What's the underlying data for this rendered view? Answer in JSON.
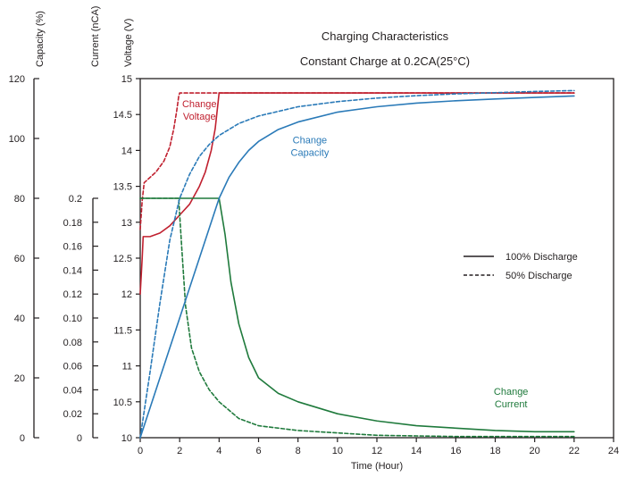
{
  "chart_data": {
    "type": "line",
    "title": "Charging Characteristics",
    "subtitle": "Constant Charge at 0.2CA(25°C)",
    "xlabel": "Time (Hour)",
    "xlim": [
      0,
      24
    ],
    "x_ticks": [
      "0",
      "2",
      "4",
      "6",
      "8",
      "10",
      "12",
      "14",
      "16",
      "18",
      "20",
      "22",
      "24"
    ],
    "y_axes": {
      "voltage": {
        "label": "Voltage (V)",
        "range": [
          10,
          15
        ],
        "ticks": [
          "10",
          "10.5",
          "11",
          "11.5",
          "12",
          "12.5",
          "13",
          "13.5",
          "14",
          "14.5",
          "15"
        ]
      },
      "current": {
        "label": "Current (nCA)",
        "range": [
          0,
          0.2
        ],
        "ticks": [
          "0",
          "0.02",
          "0.04",
          "0.06",
          "0.08",
          "0.10",
          "0.12",
          "0.14",
          "0.16",
          "0.18",
          "0.2"
        ]
      },
      "capacity": {
        "label": "Capacity (%)",
        "range": [
          0,
          120
        ],
        "ticks": [
          "0",
          "20",
          "40",
          "60",
          "80",
          "100",
          "120"
        ]
      }
    },
    "legend": {
      "placement": "right",
      "entries": [
        {
          "label": "100% Discharge",
          "style": "solid"
        },
        {
          "label": "50% Discharge",
          "style": "dashed"
        }
      ]
    },
    "annotations": [
      {
        "text": [
          "Change",
          "Voltage"
        ],
        "color": "#c0202f",
        "x": 3.0,
        "y_voltage": 14.6
      },
      {
        "text": [
          "Change",
          "Capacity"
        ],
        "color": "#2a7ab8",
        "x": 8.6,
        "y_voltage": 14.1
      },
      {
        "text": [
          "Change",
          "Current"
        ],
        "color": "#1f7a3c",
        "x": 18.8,
        "y_voltage": 10.6
      }
    ],
    "colors": {
      "voltage": "#c0202f",
      "capacity": "#2a7ab8",
      "current": "#1f7a3c",
      "axis": "#231f20"
    },
    "series": [
      {
        "quantity": "voltage",
        "discharge": "100%",
        "style": "solid",
        "axis": "voltage",
        "x": [
          0,
          0.1,
          0.15,
          0.2,
          0.5,
          1,
          1.5,
          2,
          2.5,
          3,
          3.3,
          3.6,
          3.8,
          3.9,
          4,
          4,
          22
        ],
        "y": [
          12.0,
          12.5,
          12.8,
          12.8,
          12.8,
          12.85,
          12.95,
          13.1,
          13.25,
          13.5,
          13.7,
          14.0,
          14.3,
          14.55,
          14.8,
          14.8,
          14.8
        ]
      },
      {
        "quantity": "voltage",
        "discharge": "50%",
        "style": "dashed",
        "axis": "voltage",
        "x": [
          0,
          0.1,
          0.2,
          0.4,
          0.8,
          1.2,
          1.5,
          1.7,
          1.85,
          1.95,
          2,
          4,
          8,
          12,
          16,
          20,
          22
        ],
        "y": [
          12.9,
          13.3,
          13.55,
          13.6,
          13.7,
          13.85,
          14.05,
          14.3,
          14.55,
          14.75,
          14.8,
          14.8,
          14.8,
          14.8,
          14.8,
          14.8,
          14.8
        ]
      },
      {
        "quantity": "current",
        "discharge": "100%",
        "style": "solid",
        "axis": "current",
        "x": [
          0,
          4,
          4.3,
          4.6,
          5,
          5.5,
          6,
          7,
          8,
          10,
          12,
          14,
          16,
          18,
          20,
          22
        ],
        "y": [
          0.2,
          0.2,
          0.17,
          0.13,
          0.095,
          0.067,
          0.05,
          0.037,
          0.03,
          0.02,
          0.014,
          0.01,
          0.008,
          0.006,
          0.005,
          0.005
        ]
      },
      {
        "quantity": "current",
        "discharge": "50%",
        "style": "dashed",
        "axis": "current",
        "x": [
          0,
          1.95,
          2.1,
          2.3,
          2.6,
          3,
          3.5,
          4,
          5,
          6,
          8,
          10,
          12,
          14,
          16,
          18,
          20,
          22
        ],
        "y": [
          0.2,
          0.2,
          0.16,
          0.11,
          0.075,
          0.055,
          0.04,
          0.03,
          0.016,
          0.01,
          0.006,
          0.004,
          0.002,
          0.0015,
          0.001,
          0.001,
          0.001,
          0.001
        ]
      },
      {
        "quantity": "capacity",
        "discharge": "100%",
        "style": "solid",
        "axis": "capacity",
        "x": [
          0,
          1,
          2,
          3,
          4,
          4.5,
          5,
          5.5,
          6,
          7,
          8,
          10,
          12,
          14,
          16,
          18,
          20,
          22
        ],
        "y": [
          0,
          20,
          40,
          60,
          80,
          87,
          92,
          96,
          99,
          103,
          105.5,
          108.8,
          110.6,
          111.8,
          112.6,
          113.2,
          113.7,
          114.2
        ]
      },
      {
        "quantity": "capacity",
        "discharge": "50%",
        "style": "dashed",
        "axis": "capacity",
        "x": [
          0,
          0.5,
          1,
          1.5,
          2,
          2.5,
          3,
          3.5,
          4,
          5,
          6,
          8,
          10,
          12,
          14,
          16,
          18,
          20,
          22
        ],
        "y": [
          0,
          22,
          45,
          66,
          80,
          88,
          94,
          98,
          101,
          105,
          107.5,
          110.6,
          112.3,
          113.5,
          114.3,
          114.9,
          115.3,
          115.7,
          116
        ]
      }
    ]
  }
}
